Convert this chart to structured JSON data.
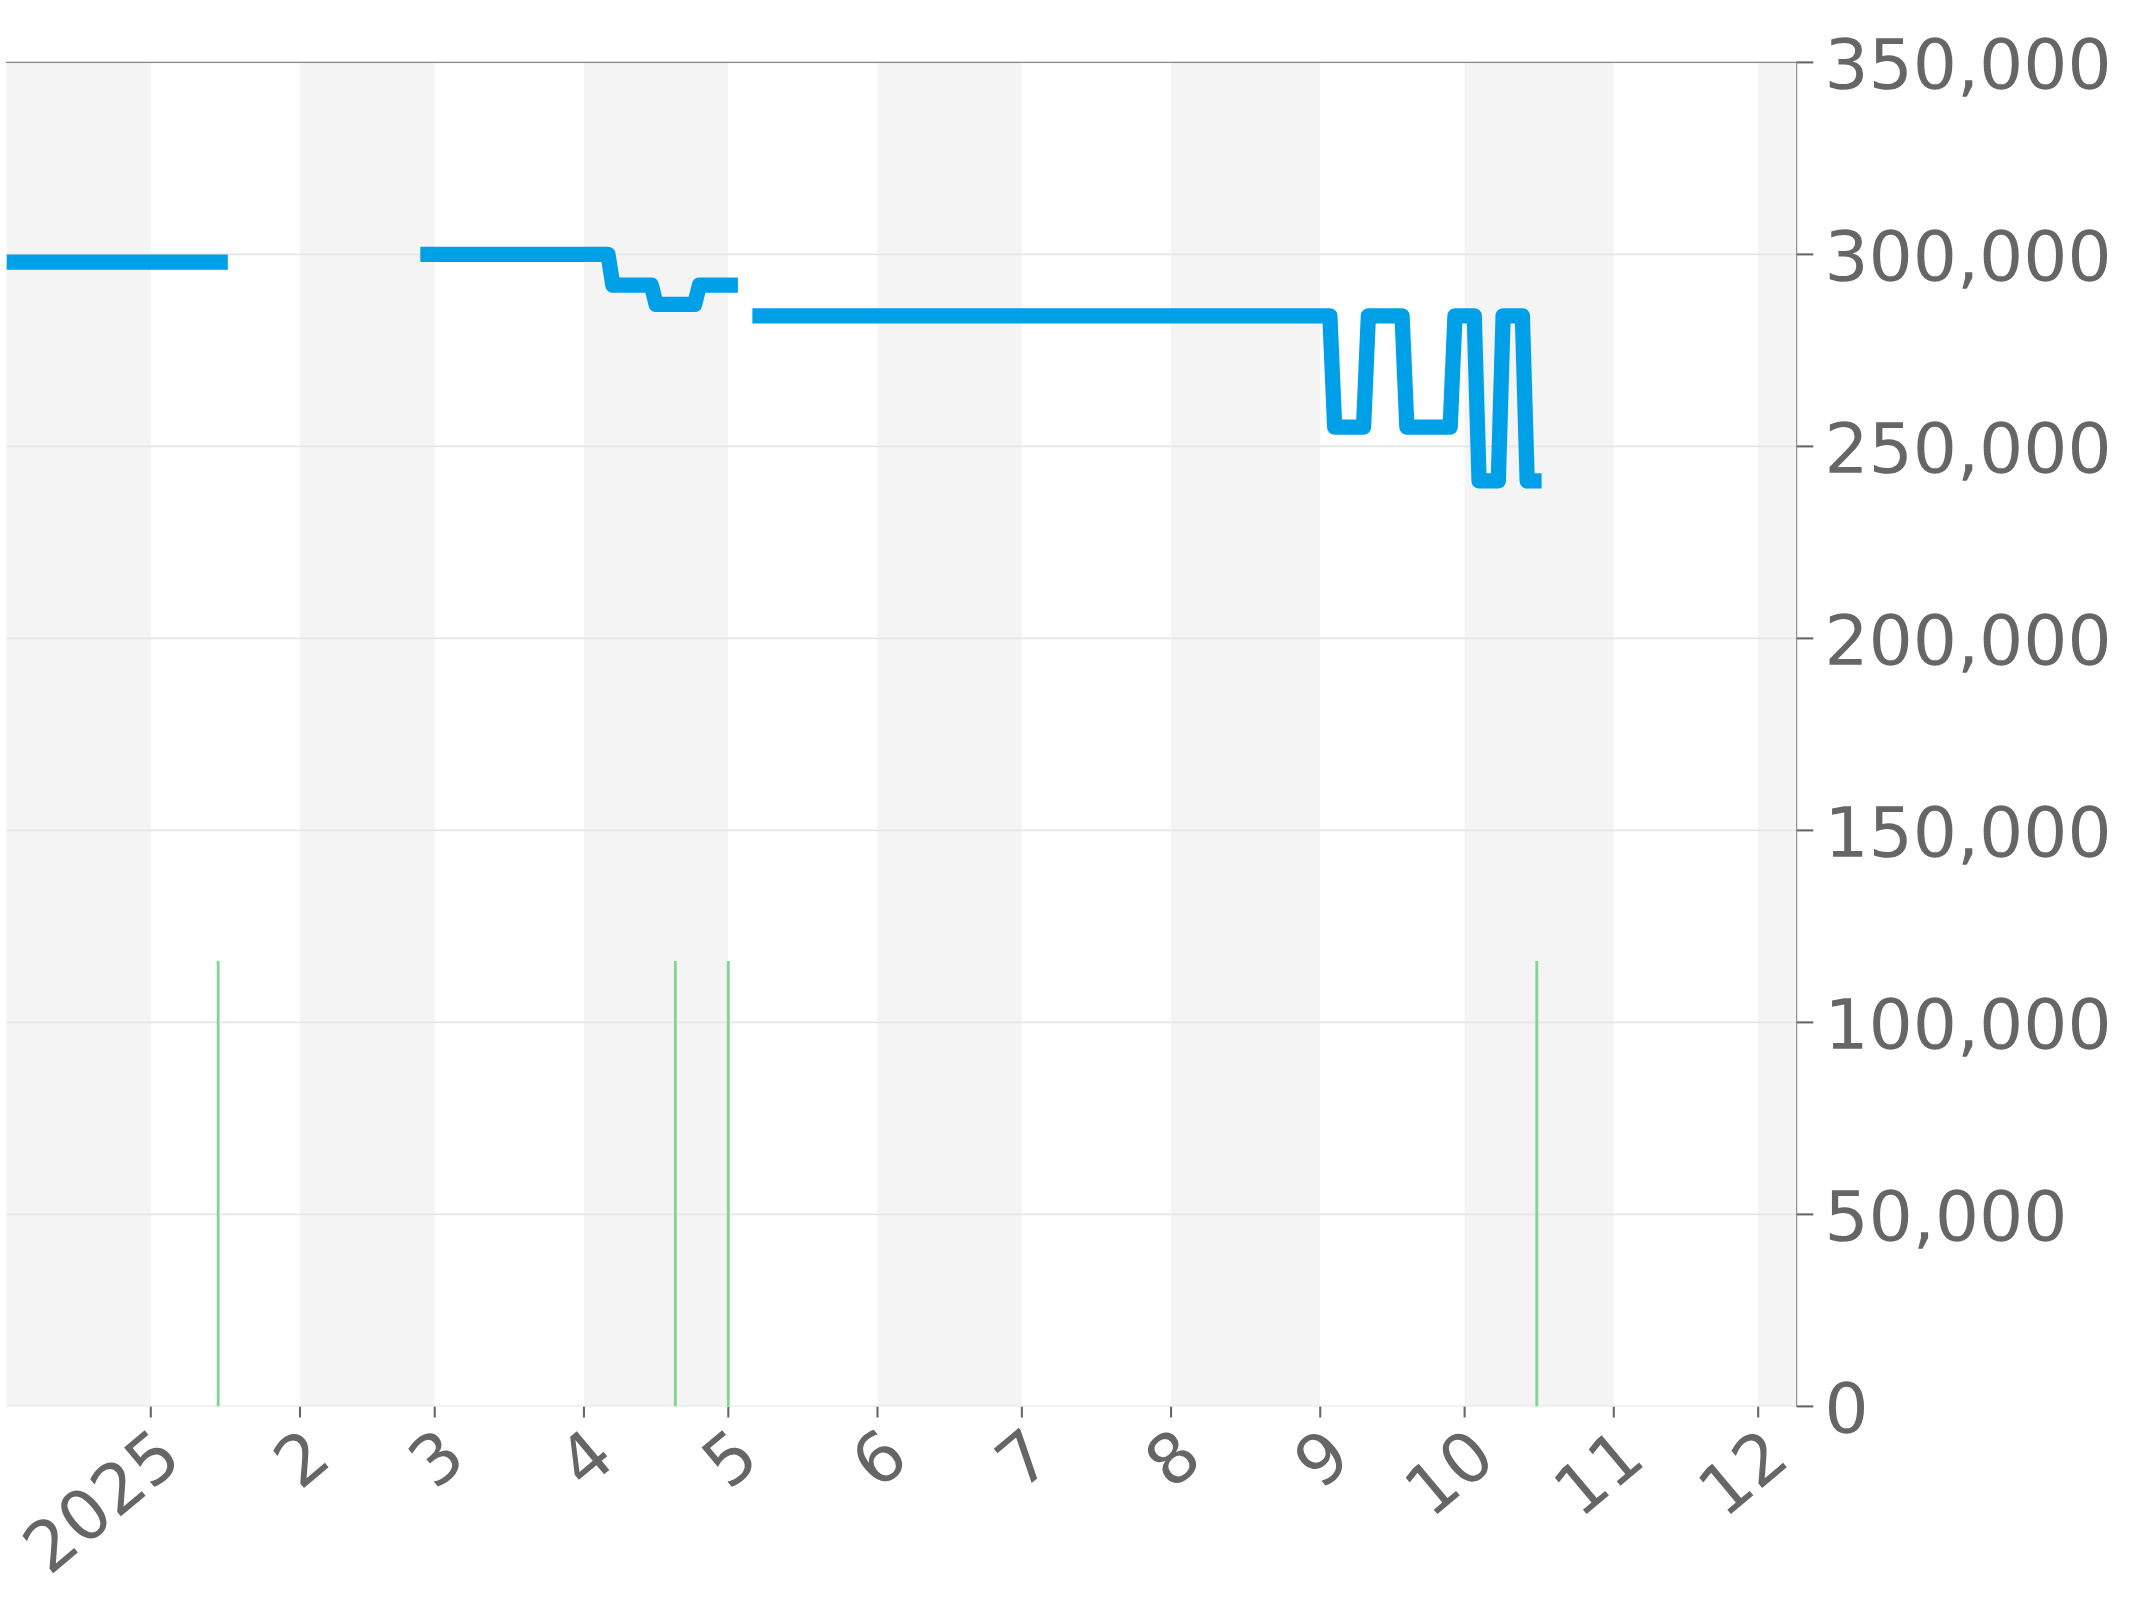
{
  "chart_data": {
    "type": "line",
    "x": [
      "2024-12-02",
      "2025-01-17",
      null,
      "2025-02-26",
      "2025-04-06",
      "2025-04-07",
      "2025-04-15",
      "2025-04-16",
      "2025-04-24",
      "2025-04-25",
      "2025-05-03",
      null,
      "2025-05-06",
      "2025-09-03",
      "2025-09-04",
      "2025-09-10",
      "2025-09-11",
      "2025-09-18",
      "2025-09-19",
      "2025-09-28",
      "2025-09-29",
      "2025-10-03",
      "2025-10-04",
      "2025-10-08",
      "2025-10-09",
      "2025-10-13",
      "2025-10-14",
      "2025-10-17"
    ],
    "series": [
      {
        "color": "#00a0e9",
        "values": [
          298000,
          298000,
          null,
          300000,
          300000,
          292000,
          292000,
          287000,
          287000,
          292000,
          292000,
          null,
          284000,
          284000,
          255000,
          255000,
          284000,
          284000,
          255000,
          255000,
          284000,
          284000,
          241000,
          241000,
          284000,
          284000,
          241000,
          241000
        ]
      },
      {
        "type": "bar",
        "color": "#86d39a",
        "x": [
          "2025-01-15",
          "2025-04-20",
          "2025-05-01",
          "2025-10-16"
        ],
        "values": [
          116000,
          116000,
          116000,
          116000
        ]
      }
    ],
    "xlim": [
      "2024-12-02",
      "2025-12-09"
    ],
    "xticks": [
      {
        "value": "2025-01-01",
        "label": "2025"
      },
      {
        "value": "2025-02-01",
        "label": "2"
      },
      {
        "value": "2025-03-01",
        "label": "3"
      },
      {
        "value": "2025-04-01",
        "label": "4"
      },
      {
        "value": "2025-05-01",
        "label": "5"
      },
      {
        "value": "2025-06-01",
        "label": "6"
      },
      {
        "value": "2025-07-01",
        "label": "7"
      },
      {
        "value": "2025-08-01",
        "label": "8"
      },
      {
        "value": "2025-09-01",
        "label": "9"
      },
      {
        "value": "2025-10-01",
        "label": "10"
      },
      {
        "value": "2025-11-01",
        "label": "11"
      },
      {
        "value": "2025-12-01",
        "label": "12"
      }
    ],
    "ylim": [
      0,
      350000
    ],
    "yticks": [
      {
        "value": 0,
        "label": "0"
      },
      {
        "value": 50000,
        "label": "50,000"
      },
      {
        "value": 100000,
        "label": "100,000"
      },
      {
        "value": 150000,
        "label": "150,000"
      },
      {
        "value": 200000,
        "label": "200,000"
      },
      {
        "value": 250000,
        "label": "250,000"
      },
      {
        "value": 300000,
        "label": "300,000"
      },
      {
        "value": 350000,
        "label": "350,000"
      }
    ],
    "grid": "y",
    "legend": false,
    "marker": "none",
    "line_style": "solid",
    "bands": [
      {
        "axis": "x",
        "from": "2024-12-02",
        "to": "2025-01-01",
        "color": "#f4f4f4"
      },
      {
        "axis": "x",
        "from": "2025-02-01",
        "to": "2025-03-01",
        "color": "#f4f4f4"
      },
      {
        "axis": "x",
        "from": "2025-04-01",
        "to": "2025-05-01",
        "color": "#f4f4f4"
      },
      {
        "axis": "x",
        "from": "2025-06-01",
        "to": "2025-07-01",
        "color": "#f4f4f4"
      },
      {
        "axis": "x",
        "from": "2025-08-01",
        "to": "2025-09-01",
        "color": "#f4f4f4"
      },
      {
        "axis": "x",
        "from": "2025-10-01",
        "to": "2025-11-01",
        "color": "#f4f4f4"
      },
      {
        "axis": "x",
        "from": "2025-12-01",
        "to": "2025-12-09",
        "color": "#f4f4f4"
      }
    ]
  }
}
